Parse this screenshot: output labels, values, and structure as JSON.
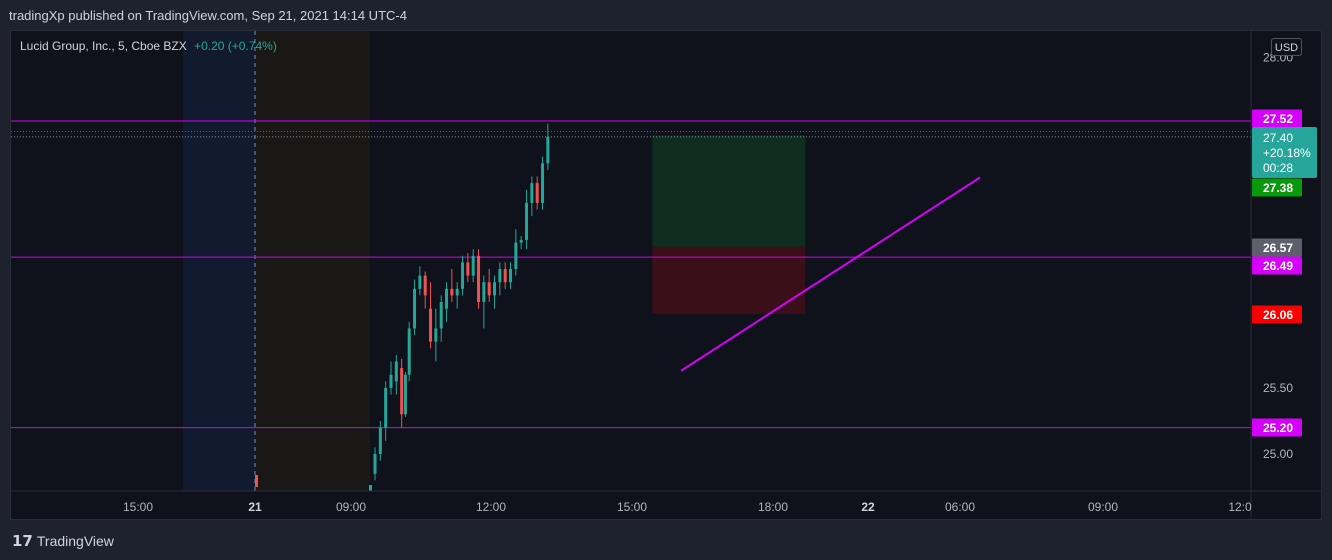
{
  "header": {
    "published_line": "tradingXp published on TradingView.com, Sep 21, 2021 14:14 UTC-4"
  },
  "legend": {
    "symbol": "Lucid Group, Inc., 5, Cboe BZX",
    "change": "+0.20 (+0.74%)"
  },
  "scale": {
    "currency_button": "USD"
  },
  "footer": {
    "brand": "TradingView"
  },
  "colors": {
    "up": "#26a69a",
    "down": "#ef5350",
    "line": "#d500f9",
    "target_zone": "#0f2e1f",
    "stop_zone": "#3a0f17",
    "current_price_badge": "#26a69a",
    "green_badge": "#089a0c",
    "red_badge": "#f70000",
    "gray_badge": "#5d606b"
  },
  "chart_data": {
    "type": "candlestick",
    "symbol": "Lucid Group, Inc.",
    "interval": "5",
    "exchange": "Cboe BZX",
    "currency": "USD",
    "y_ticks": [
      "28.00",
      "25.50",
      "25.00"
    ],
    "x_ticks": [
      "15:00",
      "21",
      "09:00",
      "12:00",
      "15:00",
      "18:00",
      "22",
      "06:00",
      "09:00",
      "12:0"
    ],
    "price_badges": [
      {
        "label": "27.52",
        "kind": "line"
      },
      {
        "label": "27.40",
        "kind": "last",
        "change": "+20.18%",
        "countdown": "00:28"
      },
      {
        "label": "27.38",
        "kind": "target"
      },
      {
        "label": "26.57",
        "kind": "entry"
      },
      {
        "label": "26.49",
        "kind": "line"
      },
      {
        "label": "26.06",
        "kind": "stop"
      },
      {
        "label": "25.20",
        "kind": "line"
      }
    ],
    "horizontal_lines": [
      27.52,
      26.49,
      25.2
    ],
    "trendline": {
      "from": [
        10.6,
        25.63
      ],
      "to": [
        19.8,
        27.52
      ]
    },
    "long_position": {
      "entry": 26.57,
      "target": 27.38,
      "stop": 26.06
    },
    "candles_note": "",
    "candles": [
      [
        9.8,
        24.85,
        25.05,
        24.8,
        25.0
      ],
      [
        9.9,
        25.0,
        25.25,
        24.95,
        25.2
      ],
      [
        10.0,
        25.2,
        25.55,
        25.1,
        25.5
      ],
      [
        10.1,
        25.5,
        25.7,
        25.45,
        25.6
      ],
      [
        10.2,
        25.55,
        25.75,
        25.45,
        25.7
      ],
      [
        10.3,
        25.65,
        25.72,
        25.2,
        25.3
      ],
      [
        10.35,
        25.3,
        25.62,
        25.28,
        25.6
      ],
      [
        10.4,
        25.6,
        26.0,
        25.55,
        25.95
      ],
      [
        10.5,
        25.95,
        26.32,
        25.9,
        26.25
      ],
      [
        10.6,
        26.25,
        26.42,
        26.2,
        26.35
      ],
      [
        10.7,
        26.35,
        26.38,
        26.1,
        26.2
      ],
      [
        10.8,
        26.1,
        26.3,
        25.8,
        25.85
      ],
      [
        10.9,
        25.85,
        26.1,
        25.7,
        25.95
      ],
      [
        11.0,
        25.95,
        26.2,
        25.85,
        26.15
      ],
      [
        11.1,
        26.1,
        26.3,
        26.0,
        26.25
      ],
      [
        11.2,
        26.25,
        26.4,
        26.15,
        26.2
      ],
      [
        11.3,
        26.2,
        26.3,
        26.1,
        26.25
      ],
      [
        11.4,
        26.25,
        26.5,
        26.2,
        26.45
      ],
      [
        11.5,
        26.45,
        26.52,
        26.3,
        26.35
      ],
      [
        11.6,
        26.35,
        26.55,
        26.3,
        26.5
      ],
      [
        11.7,
        26.5,
        26.55,
        26.1,
        26.15
      ],
      [
        11.8,
        26.15,
        26.35,
        25.95,
        26.3
      ],
      [
        11.9,
        26.3,
        26.4,
        26.15,
        26.2
      ],
      [
        12.0,
        26.2,
        26.35,
        26.1,
        26.3
      ],
      [
        12.1,
        26.3,
        26.45,
        26.2,
        26.4
      ],
      [
        12.2,
        26.4,
        26.45,
        26.25,
        26.3
      ],
      [
        12.3,
        26.3,
        26.45,
        26.25,
        26.4
      ],
      [
        12.4,
        26.4,
        26.7,
        26.35,
        26.6
      ],
      [
        12.5,
        26.6,
        26.65,
        26.55,
        26.62
      ],
      [
        12.6,
        26.62,
        27.0,
        26.55,
        26.9
      ],
      [
        12.7,
        26.9,
        27.1,
        26.8,
        27.05
      ],
      [
        12.8,
        27.05,
        27.1,
        26.85,
        26.9
      ],
      [
        12.9,
        26.9,
        27.25,
        26.85,
        27.2
      ],
      [
        13.0,
        27.2,
        27.5,
        27.15,
        27.4
      ]
    ]
  }
}
